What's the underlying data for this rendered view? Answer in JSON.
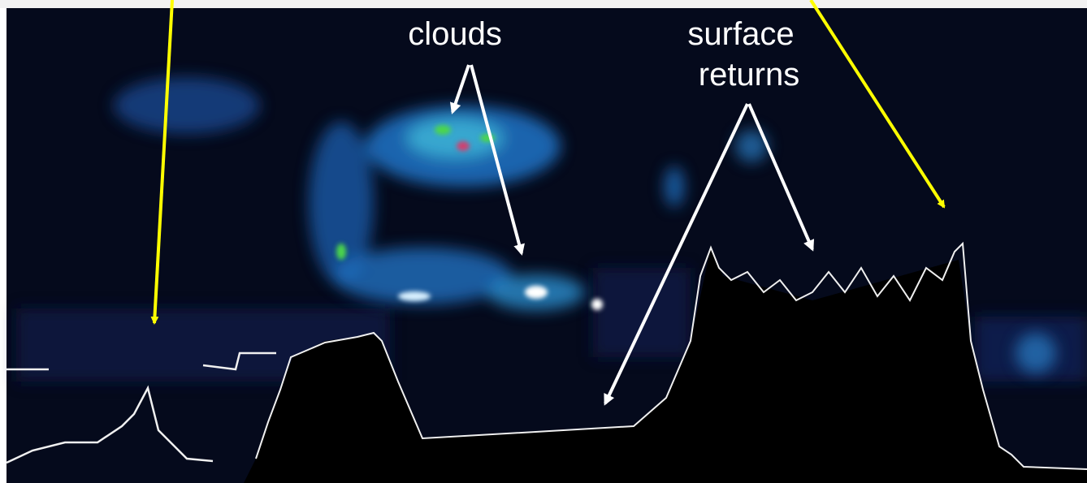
{
  "annotations": {
    "clouds": "clouds",
    "surface_returns": [
      "surface",
      "returns"
    ]
  }
}
